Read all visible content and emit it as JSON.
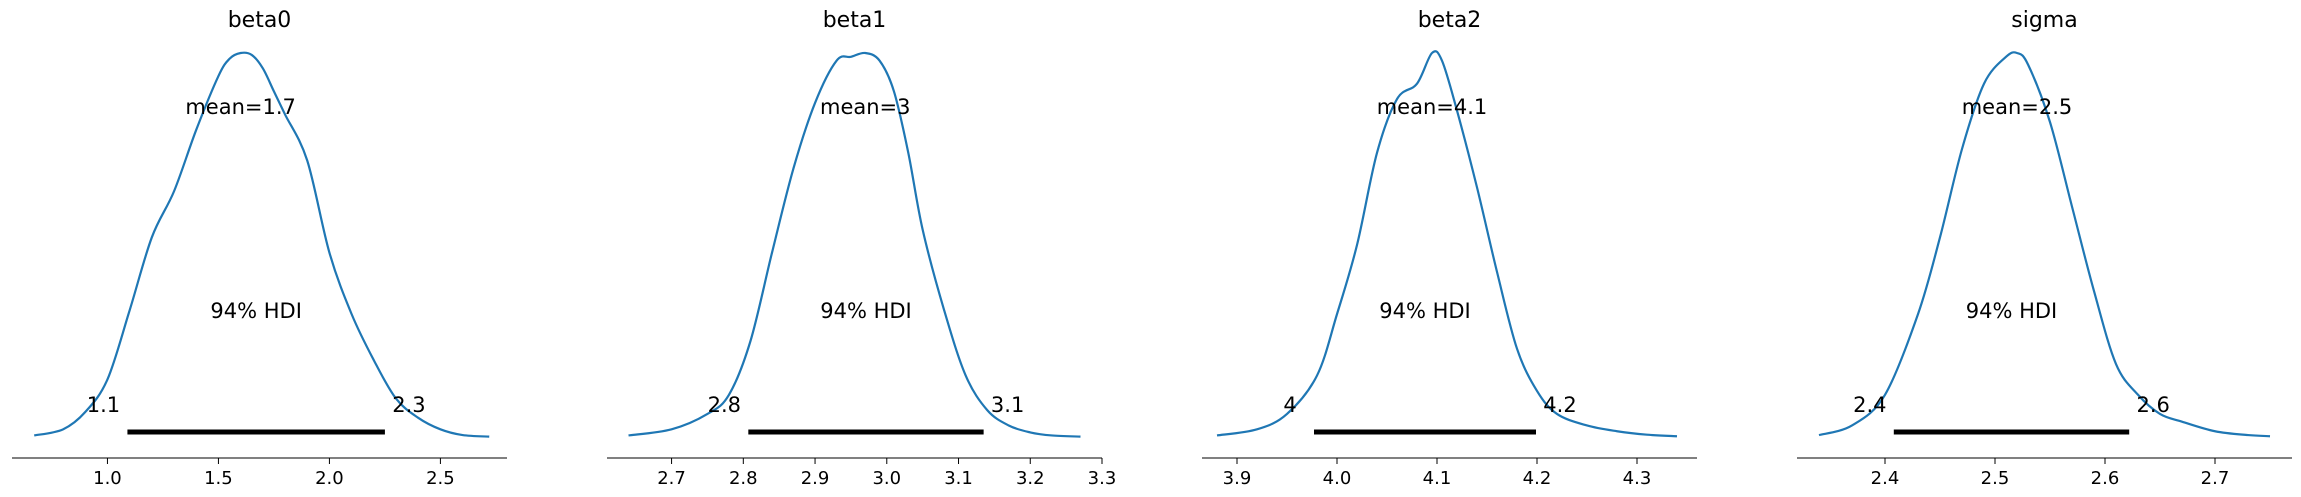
{
  "chart_data": [
    {
      "type": "area",
      "title": "beta0",
      "xlabel": "",
      "ylabel": "",
      "xlim": [
        0.57,
        2.8
      ],
      "ticks": [
        {
          "value": 1.0,
          "label": "1.0"
        },
        {
          "value": 1.5,
          "label": "1.5"
        },
        {
          "value": 2.0,
          "label": "2.0"
        },
        {
          "value": 2.5,
          "label": "2.5"
        }
      ],
      "mean_label": "mean=1.7",
      "hdi_label": "94% HDI",
      "hdi": [
        1.09,
        2.25
      ],
      "hdi_low_label": "1.1",
      "hdi_high_label": "2.3",
      "density": {
        "x": [
          0.67,
          0.8,
          0.9,
          1.0,
          1.1,
          1.2,
          1.3,
          1.4,
          1.5,
          1.55,
          1.6,
          1.65,
          1.7,
          1.75,
          1.8,
          1.9,
          2.0,
          2.1,
          2.2,
          2.3,
          2.4,
          2.5,
          2.6,
          2.72
        ],
        "y": [
          0.004,
          0.02,
          0.065,
          0.15,
          0.33,
          0.52,
          0.64,
          0.8,
          0.94,
          0.985,
          1.0,
          0.995,
          0.96,
          0.9,
          0.84,
          0.72,
          0.48,
          0.32,
          0.2,
          0.1,
          0.05,
          0.02,
          0.005,
          0.001
        ]
      }
    },
    {
      "type": "area",
      "title": "beta1",
      "xlabel": "",
      "ylabel": "",
      "xlim": [
        2.61,
        3.3
      ],
      "ticks": [
        {
          "value": 2.7,
          "label": "2.7"
        },
        {
          "value": 2.8,
          "label": "2.8"
        },
        {
          "value": 2.9,
          "label": "2.9"
        },
        {
          "value": 3.0,
          "label": "3.0"
        },
        {
          "value": 3.1,
          "label": "3.1"
        },
        {
          "value": 3.2,
          "label": "3.2"
        },
        {
          "value": 3.3,
          "label": "3.3"
        }
      ],
      "mean_label": "mean=3",
      "hdi_label": "94% HDI",
      "hdi": [
        2.807,
        3.135
      ],
      "hdi_low_label": "2.8",
      "hdi_high_label": "3.1",
      "density": {
        "x": [
          2.64,
          2.7,
          2.75,
          2.78,
          2.81,
          2.84,
          2.87,
          2.9,
          2.93,
          2.95,
          2.97,
          2.99,
          3.01,
          3.03,
          3.05,
          3.08,
          3.11,
          3.14,
          3.17,
          3.2,
          3.23,
          3.27
        ],
        "y": [
          0.004,
          0.02,
          0.06,
          0.11,
          0.25,
          0.48,
          0.7,
          0.87,
          0.98,
          0.99,
          1.0,
          0.98,
          0.9,
          0.74,
          0.54,
          0.33,
          0.16,
          0.07,
          0.03,
          0.012,
          0.004,
          0.001
        ]
      }
    },
    {
      "type": "area",
      "title": "beta2",
      "xlabel": "",
      "ylabel": "",
      "xlim": [
        3.865,
        4.36
      ],
      "ticks": [
        {
          "value": 3.9,
          "label": "3.9"
        },
        {
          "value": 4.0,
          "label": "4.0"
        },
        {
          "value": 4.1,
          "label": "4.1"
        },
        {
          "value": 4.2,
          "label": "4.2"
        },
        {
          "value": 4.3,
          "label": "4.3"
        }
      ],
      "mean_label": "mean=4.1",
      "hdi_label": "94% HDI",
      "hdi": [
        3.977,
        4.199
      ],
      "hdi_low_label": "4",
      "hdi_high_label": "4.2",
      "density": {
        "x": [
          3.88,
          3.92,
          3.95,
          3.98,
          4.0,
          4.02,
          4.04,
          4.06,
          4.08,
          4.095,
          4.105,
          4.12,
          4.14,
          4.16,
          4.18,
          4.2,
          4.22,
          4.25,
          4.28,
          4.31,
          4.34
        ],
        "y": [
          0.004,
          0.02,
          0.06,
          0.16,
          0.32,
          0.5,
          0.74,
          0.88,
          0.92,
          1.0,
          0.98,
          0.85,
          0.65,
          0.43,
          0.23,
          0.12,
          0.06,
          0.03,
          0.015,
          0.006,
          0.002
        ]
      }
    },
    {
      "type": "area",
      "title": "sigma",
      "xlabel": "",
      "ylabel": "",
      "xlim": [
        2.32,
        2.77
      ],
      "ticks": [
        {
          "value": 2.4,
          "label": "2.4"
        },
        {
          "value": 2.5,
          "label": "2.5"
        },
        {
          "value": 2.6,
          "label": "2.6"
        },
        {
          "value": 2.7,
          "label": "2.7"
        }
      ],
      "mean_label": "mean=2.5",
      "hdi_label": "94% HDI",
      "hdi": [
        2.408,
        2.622
      ],
      "hdi_low_label": "2.4",
      "hdi_high_label": "2.6",
      "density": {
        "x": [
          2.34,
          2.37,
          2.4,
          2.43,
          2.45,
          2.47,
          2.49,
          2.51,
          2.52,
          2.53,
          2.55,
          2.57,
          2.59,
          2.61,
          2.63,
          2.65,
          2.67,
          2.7,
          2.73,
          2.75
        ],
        "y": [
          0.005,
          0.03,
          0.11,
          0.32,
          0.52,
          0.75,
          0.92,
          0.99,
          1.0,
          0.97,
          0.82,
          0.6,
          0.38,
          0.19,
          0.11,
          0.06,
          0.04,
          0.015,
          0.005,
          0.002
        ]
      }
    }
  ],
  "colors": {
    "density": "#1f77b4",
    "hdi": "#000000",
    "axis": "#000000"
  }
}
